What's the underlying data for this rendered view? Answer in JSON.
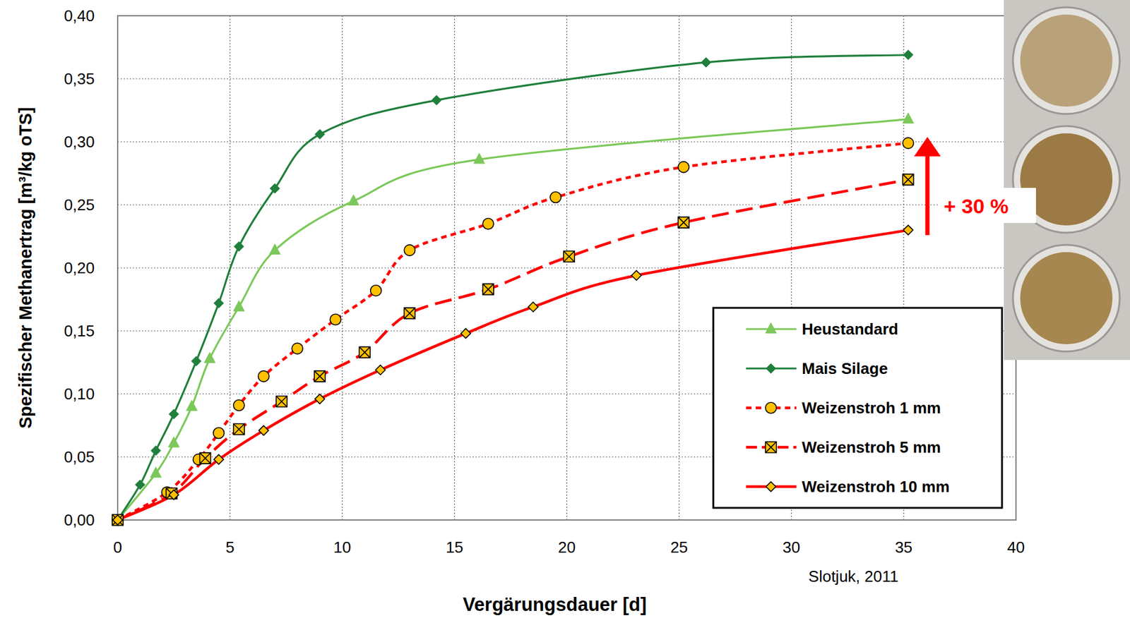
{
  "chart_data": {
    "type": "line",
    "x_label": "Vergärungsdauer [d]",
    "y_label": "Spezifischer Methanertrag  [m³/kg oTS]",
    "xlim": [
      0,
      40
    ],
    "xticks": [
      0,
      5,
      10,
      15,
      20,
      25,
      30,
      35,
      40
    ],
    "ylim": [
      0,
      0.4
    ],
    "yticks": [
      {
        "value": 0,
        "label": "0,00"
      },
      {
        "value": 0.05,
        "label": "0,05"
      },
      {
        "value": 0.1,
        "label": "0,10"
      },
      {
        "value": 0.15,
        "label": "0,15"
      },
      {
        "value": 0.2,
        "label": "0,20"
      },
      {
        "value": 0.25,
        "label": "0,25"
      },
      {
        "value": 0.3,
        "label": "0,30"
      },
      {
        "value": 0.35,
        "label": "0,35"
      },
      {
        "value": 0.4,
        "label": "0,40"
      }
    ],
    "grid": true,
    "legend": "bottom-right",
    "series": [
      {
        "name": "Heustandard",
        "color": "#7cc85a",
        "marker": "triangle",
        "line_style": "solid",
        "x": [
          0,
          1.7,
          2.5,
          3.3,
          4.1,
          5.4,
          7,
          10.5,
          16.1,
          35.2
        ],
        "values": [
          0,
          0.037,
          0.061,
          0.09,
          0.128,
          0.169,
          0.214,
          0.253,
          0.286,
          0.318
        ]
      },
      {
        "name": "Mais Silage",
        "color": "#1f7f3b",
        "marker": "diamond",
        "line_style": "solid",
        "x": [
          0,
          1,
          1.7,
          2.5,
          3.5,
          4.5,
          5.4,
          7,
          9,
          14.2,
          26.2,
          35.2
        ],
        "values": [
          0,
          0.028,
          0.055,
          0.084,
          0.126,
          0.172,
          0.217,
          0.263,
          0.306,
          0.333,
          0.363,
          0.369
        ]
      },
      {
        "name": "Weizenstroh 1 mm",
        "color": "#ff0000",
        "marker": "circle",
        "line_style": "dotted",
        "x": [
          0,
          2.2,
          3.6,
          4.5,
          5.4,
          6.5,
          8,
          9.7,
          11.5,
          13,
          16.5,
          19.5,
          25.2,
          35.2
        ],
        "values": [
          0,
          0.022,
          0.048,
          0.069,
          0.091,
          0.114,
          0.136,
          0.159,
          0.182,
          0.214,
          0.235,
          0.256,
          0.28,
          0.299
        ]
      },
      {
        "name": "Weizenstroh 5 mm",
        "color": "#ff0000",
        "marker": "x-square",
        "line_style": "dashed",
        "x": [
          0,
          2.4,
          3.9,
          5.4,
          7.3,
          9,
          11,
          13,
          16.5,
          20.1,
          25.2,
          35.2
        ],
        "values": [
          0,
          0.021,
          0.049,
          0.072,
          0.094,
          0.114,
          0.133,
          0.164,
          0.183,
          0.209,
          0.236,
          0.27
        ]
      },
      {
        "name": "Weizenstroh 10 mm",
        "color": "#ff0000",
        "marker": "diamond",
        "line_style": "solid",
        "x": [
          0,
          2.5,
          4.5,
          6.5,
          9,
          11.7,
          15.5,
          18.5,
          23.1,
          35.2
        ],
        "values": [
          0,
          0.02,
          0.048,
          0.071,
          0.096,
          0.119,
          0.148,
          0.169,
          0.194,
          0.23
        ]
      }
    ],
    "annotations": [
      {
        "text": "+ 30 %"
      }
    ],
    "source": "Slotjuk, 2011"
  }
}
